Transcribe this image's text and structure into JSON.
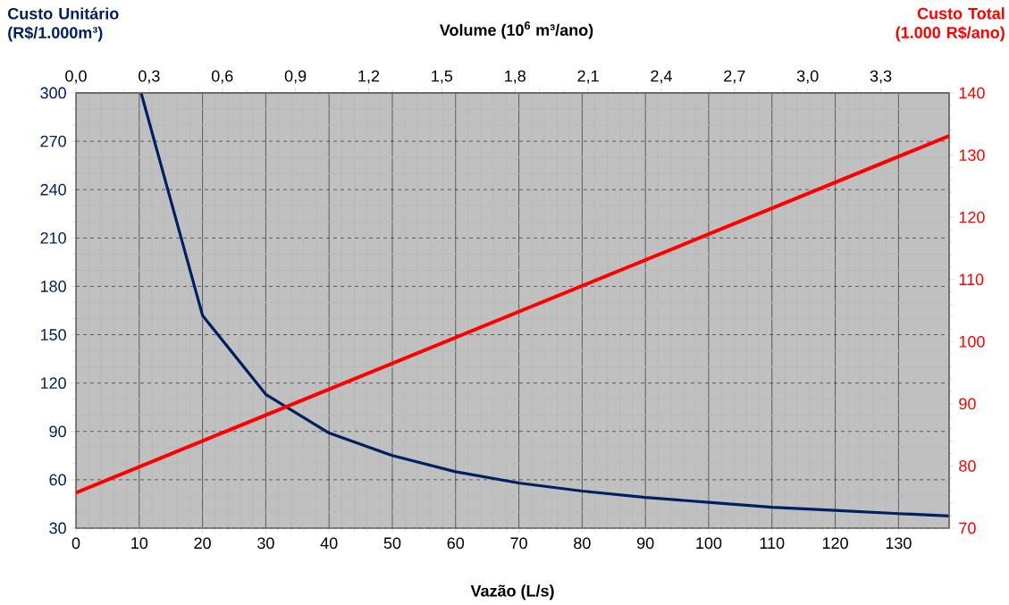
{
  "chart_data": {
    "type": "line",
    "xlabel": "Vazão (L/s)",
    "x2label": "Volume (10$^{6}$ m³/ano)",
    "ylabel": "Custo Unitário (R$/1.000m³)",
    "y2label": "Custo Total (1.000 R$/ano)",
    "xlim": [
      0,
      138
    ],
    "xticks": [
      0,
      10,
      20,
      30,
      40,
      50,
      60,
      70,
      80,
      90,
      100,
      110,
      120,
      130
    ],
    "x2lim": [
      0,
      3.58
    ],
    "x2ticks": [
      {
        "value": 0,
        "label": "0,0"
      },
      {
        "value": 0.3,
        "label": "0,3"
      },
      {
        "value": 0.6,
        "label": "0,6"
      },
      {
        "value": 0.9,
        "label": "0,9"
      },
      {
        "value": 1.2,
        "label": "1,2"
      },
      {
        "value": 1.5,
        "label": "1,5"
      },
      {
        "value": 1.8,
        "label": "1,8"
      },
      {
        "value": 2.1,
        "label": "2,1"
      },
      {
        "value": 2.4,
        "label": "2,4"
      },
      {
        "value": 2.7,
        "label": "2,7"
      },
      {
        "value": 3.0,
        "label": "3,0"
      },
      {
        "value": 3.3,
        "label": "3,3"
      }
    ],
    "ylim": [
      30,
      300
    ],
    "yticks": [
      30,
      60,
      90,
      120,
      150,
      180,
      210,
      240,
      270,
      300
    ],
    "y2lim": [
      70,
      140
    ],
    "y2ticks": [
      70,
      80,
      90,
      100,
      110,
      120,
      130,
      140
    ],
    "grid": true,
    "marker": "none",
    "line_style": "solid",
    "series": [
      {
        "color": "#002060",
        "x": [
          10.3,
          20,
          30,
          40,
          50,
          60,
          70,
          80,
          90,
          100,
          110,
          120,
          130,
          138
        ],
        "values": [
          300,
          162,
          113,
          89,
          75,
          65,
          58,
          53,
          49,
          46,
          43,
          41,
          39,
          37.6
        ]
      },
      {
        "color": "#ff0000",
        "axis": "y2",
        "x": [
          0,
          138
        ],
        "values": [
          75.7,
          133.1
        ]
      }
    ]
  }
}
